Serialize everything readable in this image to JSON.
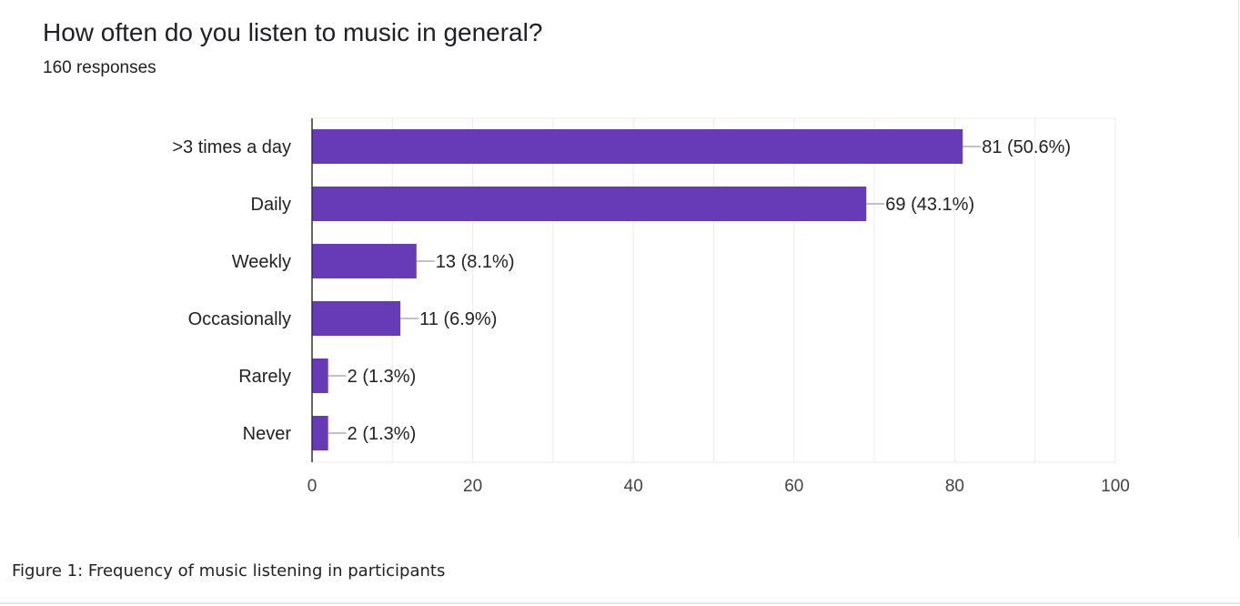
{
  "card": {
    "title": "How often do you listen to music in general?",
    "subtitle": "160 responses"
  },
  "caption": "Figure 1: Frequency of music listening in participants",
  "chart_data": {
    "type": "bar",
    "orientation": "horizontal",
    "categories": [
      ">3 times a day",
      "Daily",
      "Weekly",
      "Occasionally",
      "Rarely",
      "Never"
    ],
    "values": [
      81,
      69,
      13,
      11,
      2,
      2
    ],
    "data_labels": [
      "81 (50.6%)",
      "69 (43.1%)",
      "13 (8.1%)",
      "11 (6.9%)",
      "2 (1.3%)",
      "2 (1.3%)"
    ],
    "xlim": [
      0,
      100
    ],
    "xticks": [
      "0",
      "20",
      "40",
      "60",
      "80",
      "100"
    ],
    "grid": true,
    "colors": {
      "bar": "#673ab7",
      "grid": "#ebebeb",
      "axis": "#333333",
      "leader": "#9e9e9e"
    }
  }
}
